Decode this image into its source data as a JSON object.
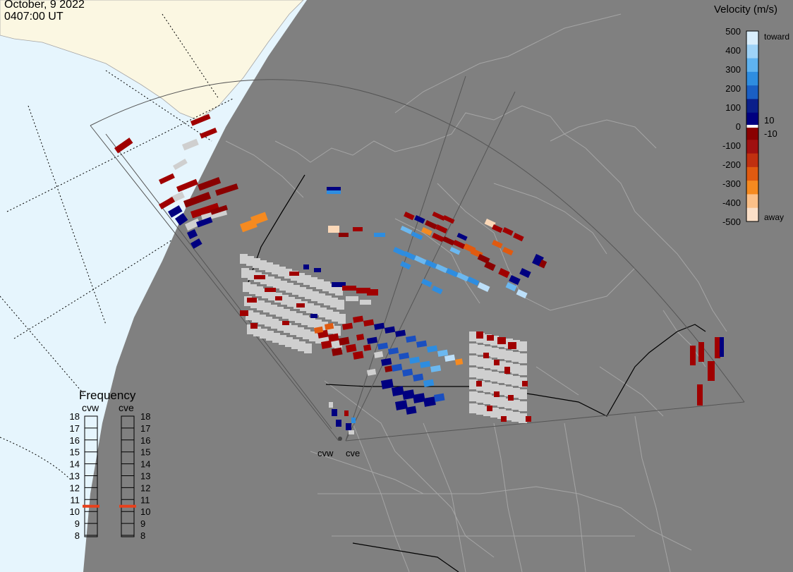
{
  "header": {
    "date": "October, 9 2022",
    "time": "0407:00 UT"
  },
  "colors": {
    "ocean": "#e6f5fd",
    "land_outside": "#fbf7e2",
    "coverage": "#808080",
    "ground_scatter": "#cfcfcf",
    "coast": "#a5a5a5",
    "frequency_marker": "#e8411c"
  },
  "velocity_scale": {
    "title": "Velocity (m/s)",
    "toward_label": "toward",
    "away_label": "away",
    "ticks": [
      "500",
      "400",
      "300",
      "200",
      "100",
      "0",
      "-100",
      "-200",
      "-300",
      "-400",
      "-500"
    ],
    "small_labels": [
      "10",
      "-10"
    ],
    "stops": [
      "#d9eefc",
      "#9fd3f7",
      "#5fb3f0",
      "#2e8de0",
      "#1a5fc4",
      "#0a1f8a",
      "#000080",
      "#8a0000",
      "#a01010",
      "#c03010",
      "#e05a10",
      "#f58a20",
      "#fbc088",
      "#fbe0c8"
    ]
  },
  "frequency_panel": {
    "title": "Frequency",
    "radars": [
      {
        "name": "cvw",
        "value_mhz": 10.5
      },
      {
        "name": "cve",
        "value_mhz": 10.5
      }
    ],
    "scale_left": [
      "18",
      "17",
      "16",
      "15",
      "14",
      "13",
      "12",
      "11",
      "10",
      "9",
      "8"
    ],
    "scale_right": [
      "18",
      "17",
      "16",
      "15",
      "14",
      "13",
      "12",
      "11",
      "10",
      "9",
      "8"
    ]
  },
  "sites": [
    {
      "name": "cvw"
    },
    {
      "name": "cve"
    }
  ]
}
